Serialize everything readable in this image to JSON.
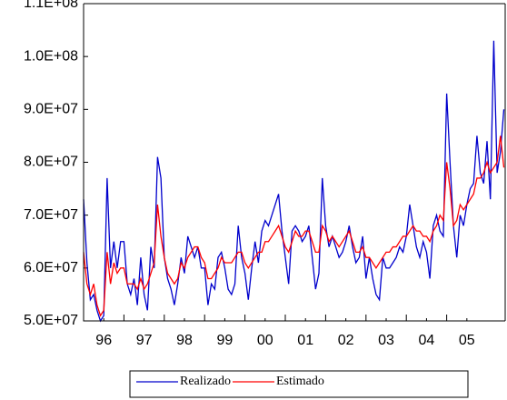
{
  "chart_data": {
    "type": "line",
    "x": [
      1996,
      1996.083,
      1996.167,
      1996.25,
      1996.333,
      1996.417,
      1996.5,
      1996.583,
      1996.667,
      1996.75,
      1996.833,
      1996.917,
      1997,
      1997.083,
      1997.167,
      1997.25,
      1997.333,
      1997.417,
      1997.5,
      1997.583,
      1997.667,
      1997.75,
      1997.833,
      1997.917,
      1998,
      1998.083,
      1998.167,
      1998.25,
      1998.333,
      1998.417,
      1998.5,
      1998.583,
      1998.667,
      1998.75,
      1998.833,
      1998.917,
      1999,
      1999.083,
      1999.167,
      1999.25,
      1999.333,
      1999.417,
      1999.5,
      1999.583,
      1999.667,
      1999.75,
      1999.833,
      1999.917,
      2000,
      2000.083,
      2000.167,
      2000.25,
      2000.333,
      2000.417,
      2000.5,
      2000.583,
      2000.667,
      2000.75,
      2000.833,
      2000.917,
      2001,
      2001.083,
      2001.167,
      2001.25,
      2001.333,
      2001.417,
      2001.5,
      2001.583,
      2001.667,
      2001.75,
      2001.833,
      2001.917,
      2002,
      2002.083,
      2002.167,
      2002.25,
      2002.333,
      2002.417,
      2002.5,
      2002.583,
      2002.667,
      2002.75,
      2002.833,
      2002.917,
      2003,
      2003.083,
      2003.167,
      2003.25,
      2003.333,
      2003.417,
      2003.5,
      2003.583,
      2003.667,
      2003.75,
      2003.833,
      2003.917,
      2004,
      2004.083,
      2004.167,
      2004.25,
      2004.333,
      2004.417,
      2004.5,
      2004.583,
      2004.667,
      2004.75,
      2004.833,
      2004.917,
      2005,
      2005.083,
      2005.167,
      2005.25,
      2005.333,
      2005.417,
      2005.5,
      2005.583,
      2005.667,
      2005.75,
      2005.833,
      2005.917,
      2006,
      2006.083,
      2006.167,
      2006.25,
      2006.333,
      2006.417
    ],
    "series": [
      {
        "name": "Realizado",
        "color": "#0000cc",
        "values": [
          73000000,
          61000000,
          54000000,
          55000000,
          52000000,
          50000000,
          51000000,
          77000000,
          60000000,
          65000000,
          60000000,
          65000000,
          65000000,
          57000000,
          55000000,
          58000000,
          53000000,
          62000000,
          55000000,
          52000000,
          64000000,
          60000000,
          81000000,
          77000000,
          62000000,
          58000000,
          56000000,
          53000000,
          57000000,
          62000000,
          59000000,
          66000000,
          64000000,
          62000000,
          64000000,
          60000000,
          60000000,
          53000000,
          57000000,
          56000000,
          62000000,
          63000000,
          60000000,
          56000000,
          55000000,
          57000000,
          68000000,
          62000000,
          59000000,
          54000000,
          60000000,
          65000000,
          61000000,
          67000000,
          69000000,
          68000000,
          70000000,
          72000000,
          74000000,
          67000000,
          62000000,
          57000000,
          67000000,
          68000000,
          67000000,
          65000000,
          66000000,
          68000000,
          62000000,
          56000000,
          59000000,
          77000000,
          68000000,
          64000000,
          66000000,
          64000000,
          62000000,
          63000000,
          65000000,
          68000000,
          64000000,
          61000000,
          62000000,
          66000000,
          58000000,
          62000000,
          58000000,
          55000000,
          54000000,
          62000000,
          60000000,
          60000000,
          61000000,
          62000000,
          64000000,
          63000000,
          66000000,
          72000000,
          68000000,
          64000000,
          62000000,
          65000000,
          63000000,
          58000000,
          68000000,
          70000000,
          67000000,
          66000000,
          93000000,
          80000000,
          68000000,
          62000000,
          70000000,
          68000000,
          72000000,
          75000000,
          76000000,
          85000000,
          78000000,
          76000000,
          84000000,
          73000000,
          103000000,
          78000000,
          82000000,
          90000000
        ]
      },
      {
        "name": "Estimado",
        "color": "#ff0000",
        "values": [
          63000000,
          57000000,
          55000000,
          57000000,
          53000000,
          51000000,
          52000000,
          63000000,
          57000000,
          61000000,
          59000000,
          60000000,
          60000000,
          57000000,
          57000000,
          57000000,
          56000000,
          58000000,
          56000000,
          57000000,
          59000000,
          61000000,
          72000000,
          66000000,
          62000000,
          59000000,
          58000000,
          57000000,
          58000000,
          61000000,
          60000000,
          62000000,
          63000000,
          64000000,
          64000000,
          62000000,
          61000000,
          58000000,
          58000000,
          59000000,
          60000000,
          62000000,
          61000000,
          61000000,
          61000000,
          62000000,
          63000000,
          63000000,
          61000000,
          60000000,
          61000000,
          62000000,
          63000000,
          63000000,
          65000000,
          65000000,
          66000000,
          67000000,
          68000000,
          66000000,
          64000000,
          63000000,
          65000000,
          67000000,
          66000000,
          66000000,
          67000000,
          67000000,
          65000000,
          63000000,
          63000000,
          68000000,
          67000000,
          65000000,
          66000000,
          65000000,
          64000000,
          65000000,
          66000000,
          67000000,
          65000000,
          63000000,
          63000000,
          64000000,
          62000000,
          62000000,
          61000000,
          60000000,
          61000000,
          62000000,
          63000000,
          63000000,
          64000000,
          64000000,
          65000000,
          66000000,
          66000000,
          67000000,
          68000000,
          67000000,
          67000000,
          66000000,
          66000000,
          65000000,
          67000000,
          68000000,
          70000000,
          69000000,
          80000000,
          75000000,
          68000000,
          69000000,
          72000000,
          71000000,
          72000000,
          73000000,
          74000000,
          77000000,
          77000000,
          78000000,
          80000000,
          78000000,
          79000000,
          80000000,
          85000000,
          79000000
        ]
      }
    ],
    "xlim": [
      1996,
      2006.45
    ],
    "xticks": [
      {
        "value": 1996.5,
        "label": "96"
      },
      {
        "value": 1997.5,
        "label": "97"
      },
      {
        "value": 1998.5,
        "label": "98"
      },
      {
        "value": 1999.5,
        "label": "99"
      },
      {
        "value": 2000.5,
        "label": "00"
      },
      {
        "value": 2001.5,
        "label": "01"
      },
      {
        "value": 2002.5,
        "label": "02"
      },
      {
        "value": 2003.5,
        "label": "03"
      },
      {
        "value": 2004.5,
        "label": "04"
      },
      {
        "value": 2005.5,
        "label": "05"
      }
    ],
    "ylim": [
      50000000,
      110000000
    ],
    "yticks": [
      {
        "value": 50000000,
        "label": "5.0E+07"
      },
      {
        "value": 60000000,
        "label": "6.0E+07"
      },
      {
        "value": 70000000,
        "label": "7.0E+07"
      },
      {
        "value": 80000000,
        "label": "8.0E+07"
      },
      {
        "value": 90000000,
        "label": "9.0E+07"
      },
      {
        "value": 100000000,
        "label": "1.0E+08"
      },
      {
        "value": 110000000,
        "label": "1.1E+08"
      }
    ],
    "legend": "bottom"
  }
}
